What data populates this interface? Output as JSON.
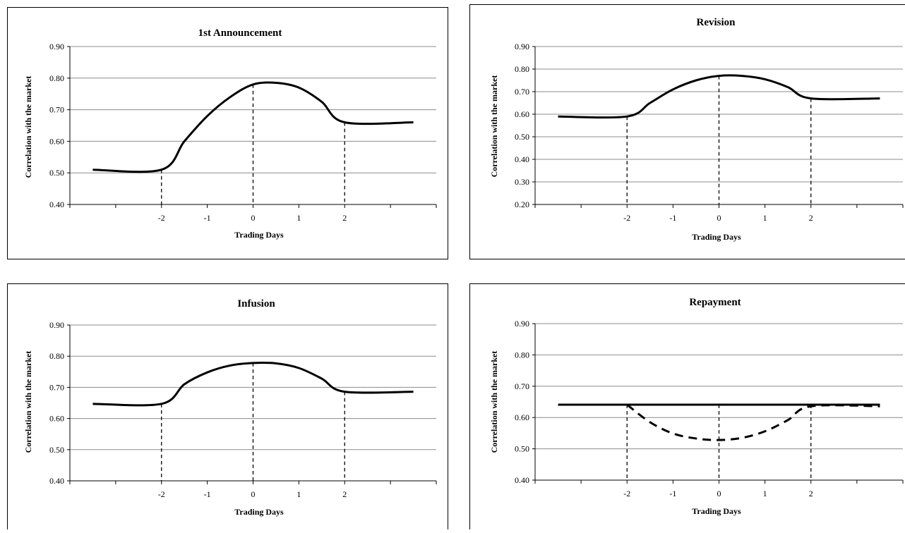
{
  "chart_data": [
    {
      "type": "line",
      "title": "1st Announcement",
      "xlabel": "Trading Days",
      "ylabel": "Correlation with the market",
      "ylim": [
        0.4,
        0.9
      ],
      "yticks": [
        "0.40",
        "0.50",
        "0.60",
        "0.70",
        "0.80",
        "0.90"
      ],
      "xticks": [
        "-2",
        "-1",
        "0",
        "1",
        "2"
      ],
      "xlim": [
        -4,
        4
      ],
      "grid": true,
      "markers_at": [
        -2,
        0,
        2
      ],
      "series": [
        {
          "style": "solid",
          "x": [
            -3.5,
            -2,
            -1.5,
            -1,
            -0.5,
            0,
            0.5,
            1,
            1.5,
            2,
            3.5
          ],
          "y": [
            0.51,
            0.51,
            0.6,
            0.68,
            0.74,
            0.78,
            0.785,
            0.77,
            0.725,
            0.66,
            0.66
          ]
        }
      ]
    },
    {
      "type": "line",
      "title": "Revision",
      "xlabel": "Trading Days",
      "ylabel": "Correlation with the market",
      "ylim": [
        0.2,
        0.9
      ],
      "yticks": [
        "0.20",
        "0.30",
        "0.40",
        "0.50",
        "0.60",
        "0.70",
        "0.80",
        "0.90"
      ],
      "xticks": [
        "-2",
        "-1",
        "0",
        "1",
        "2"
      ],
      "xlim": [
        -4,
        4
      ],
      "grid": true,
      "markers_at": [
        -2,
        0,
        2
      ],
      "series": [
        {
          "style": "solid",
          "x": [
            -3.5,
            -2,
            -1.5,
            -1,
            -0.5,
            0,
            0.5,
            1,
            1.5,
            2,
            3.5
          ],
          "y": [
            0.59,
            0.59,
            0.65,
            0.71,
            0.75,
            0.77,
            0.77,
            0.755,
            0.72,
            0.67,
            0.67
          ]
        }
      ]
    },
    {
      "type": "line",
      "title": "Infusion",
      "xlabel": "Trading Days",
      "ylabel": "Correlation with the market",
      "ylim": [
        0.4,
        0.9
      ],
      "yticks": [
        "0.40",
        "0.50",
        "0.60",
        "0.70",
        "0.80",
        "0.90"
      ],
      "xticks": [
        "-2",
        "-1",
        "0",
        "1",
        "2"
      ],
      "xlim": [
        -4,
        4
      ],
      "grid": true,
      "markers_at": [
        -2,
        0,
        2
      ],
      "series": [
        {
          "style": "solid",
          "x": [
            -3.5,
            -2,
            -1.5,
            -1,
            -0.5,
            0,
            0.5,
            1,
            1.5,
            2,
            3.5
          ],
          "y": [
            0.647,
            0.647,
            0.71,
            0.748,
            0.77,
            0.778,
            0.777,
            0.762,
            0.728,
            0.686,
            0.686
          ]
        }
      ]
    },
    {
      "type": "line",
      "title": "Repayment",
      "xlabel": "Trading Days",
      "ylabel": "Correlation with the market",
      "ylim": [
        0.4,
        0.9
      ],
      "yticks": [
        "0.40",
        "0.50",
        "0.60",
        "0.70",
        "0.80",
        "0.90"
      ],
      "xticks": [
        "-2",
        "-1",
        "0",
        "1",
        "2"
      ],
      "xlim": [
        -4,
        4
      ],
      "grid": true,
      "markers_at": [
        -2,
        0,
        2
      ],
      "series": [
        {
          "style": "solid",
          "x": [
            -3.5,
            3.5
          ],
          "y": [
            0.641,
            0.641
          ]
        },
        {
          "style": "dashed",
          "x": [
            -2,
            -1.5,
            -1,
            -0.5,
            0,
            0.5,
            1,
            1.5,
            2,
            3.5
          ],
          "y": [
            0.641,
            0.585,
            0.549,
            0.533,
            0.528,
            0.535,
            0.556,
            0.592,
            0.636,
            0.636
          ]
        }
      ]
    }
  ]
}
